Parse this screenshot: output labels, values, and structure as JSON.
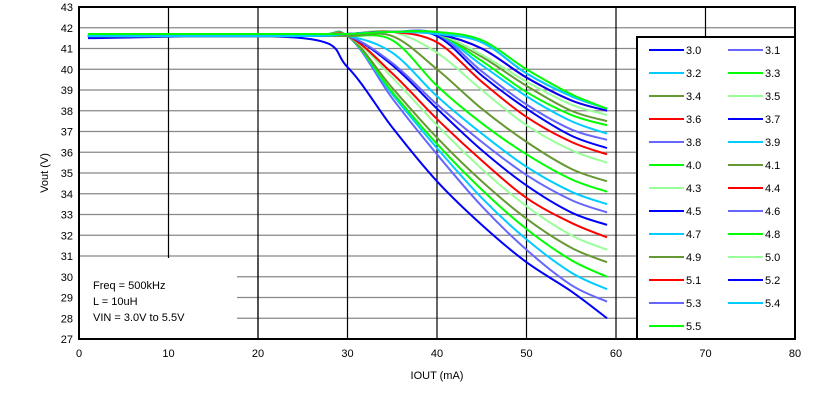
{
  "chart_data": {
    "type": "line",
    "title": "",
    "xlabel": "IOUT (mA)",
    "ylabel": "Vout (V)",
    "xlim": [
      0,
      80
    ],
    "ylim": [
      27,
      43
    ],
    "xticks": [
      "0",
      "10",
      "20",
      "30",
      "40",
      "50",
      "60",
      "70",
      "80"
    ],
    "yticks": [
      "27",
      "28",
      "29",
      "30",
      "31",
      "32",
      "33",
      "34",
      "35",
      "36",
      "37",
      "38",
      "39",
      "40",
      "41",
      "42",
      "43"
    ],
    "grid": true,
    "legend_placement": "right",
    "annotation": [
      "Freq = 500kHz",
      "L = 10uH",
      "VIN = 3.0V to 5.5V"
    ],
    "x": [
      1,
      25,
      30,
      35,
      40,
      45,
      50,
      55,
      59
    ],
    "series": [
      {
        "name": "3.0",
        "color": "#0000ff",
        "values": [
          41.5,
          41.5,
          40.1,
          37.2,
          34.6,
          32.5,
          30.7,
          29.3,
          28.0
        ]
      },
      {
        "name": "3.1",
        "color": "#6666ff",
        "values": [
          41.6,
          41.6,
          41.6,
          38.6,
          35.9,
          33.4,
          31.3,
          29.6,
          28.8
        ]
      },
      {
        "name": "3.2",
        "color": "#00ccff",
        "values": [
          41.6,
          41.6,
          41.6,
          38.8,
          36.2,
          33.8,
          31.8,
          30.2,
          29.4
        ]
      },
      {
        "name": "3.3",
        "color": "#00ff00",
        "values": [
          41.6,
          41.6,
          41.6,
          38.9,
          36.4,
          34.2,
          32.3,
          30.8,
          30.0
        ]
      },
      {
        "name": "3.4",
        "color": "#669933",
        "values": [
          41.6,
          41.6,
          41.6,
          39.1,
          36.7,
          34.6,
          32.8,
          31.4,
          30.7
        ]
      },
      {
        "name": "3.5",
        "color": "#99ff99",
        "values": [
          41.6,
          41.6,
          41.6,
          39.6,
          37.3,
          35.2,
          33.4,
          32.0,
          31.3
        ]
      },
      {
        "name": "3.6",
        "color": "#ff0000",
        "values": [
          41.6,
          41.6,
          41.6,
          39.8,
          37.6,
          35.6,
          33.8,
          32.6,
          31.9
        ]
      },
      {
        "name": "3.7",
        "color": "#0000ff",
        "values": [
          41.6,
          41.6,
          41.6,
          40.2,
          38.1,
          36.1,
          34.4,
          33.1,
          32.5
        ]
      },
      {
        "name": "3.8",
        "color": "#6666ff",
        "values": [
          41.6,
          41.6,
          41.6,
          40.3,
          38.3,
          36.5,
          34.9,
          33.7,
          33.1
        ]
      },
      {
        "name": "3.9",
        "color": "#00ccff",
        "values": [
          41.6,
          41.6,
          41.6,
          40.8,
          38.7,
          36.9,
          35.3,
          34.1,
          33.5
        ]
      },
      {
        "name": "4.0",
        "color": "#00ff00",
        "values": [
          41.6,
          41.6,
          41.6,
          41.4,
          39.2,
          37.4,
          35.9,
          34.7,
          34.1
        ]
      },
      {
        "name": "4.1",
        "color": "#669933",
        "values": [
          41.6,
          41.6,
          41.6,
          41.6,
          40.0,
          38.1,
          36.5,
          35.2,
          34.6
        ]
      },
      {
        "name": "4.3",
        "color": "#99ff99",
        "values": [
          41.6,
          41.6,
          41.7,
          41.8,
          40.8,
          39.0,
          37.3,
          36.1,
          35.5
        ]
      },
      {
        "name": "4.4",
        "color": "#ff0000",
        "values": [
          41.6,
          41.6,
          41.7,
          41.8,
          41.3,
          39.4,
          37.7,
          36.5,
          35.9
        ]
      },
      {
        "name": "4.5",
        "color": "#0000ff",
        "values": [
          41.6,
          41.6,
          41.7,
          41.8,
          41.6,
          39.7,
          38.1,
          36.8,
          36.2
        ]
      },
      {
        "name": "4.6",
        "color": "#6666ff",
        "values": [
          41.6,
          41.6,
          41.7,
          41.8,
          41.7,
          39.9,
          38.3,
          37.1,
          36.6
        ]
      },
      {
        "name": "4.7",
        "color": "#00ccff",
        "values": [
          41.6,
          41.6,
          41.7,
          41.8,
          41.7,
          40.2,
          38.7,
          37.5,
          36.9
        ]
      },
      {
        "name": "4.8",
        "color": "#00ff00",
        "values": [
          41.6,
          41.6,
          41.7,
          41.8,
          41.7,
          40.4,
          38.9,
          37.8,
          37.3
        ]
      },
      {
        "name": "4.9",
        "color": "#669933",
        "values": [
          41.6,
          41.6,
          41.7,
          41.8,
          41.7,
          40.6,
          39.2,
          38.0,
          37.5
        ]
      },
      {
        "name": "5.0",
        "color": "#99ff99",
        "values": [
          41.6,
          41.6,
          41.7,
          41.8,
          41.7,
          40.7,
          39.4,
          38.3,
          37.8
        ]
      },
      {
        "name": "5.1",
        "color": "#ff0000",
        "values": [
          41.6,
          41.6,
          41.7,
          41.8,
          41.7,
          41.0,
          39.6,
          38.5,
          38.0
        ]
      },
      {
        "name": "5.2",
        "color": "#0000ff",
        "values": [
          41.6,
          41.6,
          41.7,
          41.8,
          41.7,
          41.0,
          39.6,
          38.5,
          38.0
        ]
      },
      {
        "name": "5.3",
        "color": "#6666ff",
        "values": [
          41.6,
          41.6,
          41.7,
          41.8,
          41.7,
          41.3,
          39.8,
          38.7,
          38.1
        ]
      },
      {
        "name": "5.4",
        "color": "#00ccff",
        "values": [
          41.6,
          41.6,
          41.7,
          41.8,
          41.7,
          41.3,
          39.8,
          38.7,
          38.1
        ]
      },
      {
        "name": "5.5",
        "color": "#00ff00",
        "values": [
          41.7,
          41.7,
          41.7,
          41.8,
          41.8,
          41.4,
          40.0,
          38.8,
          38.1
        ]
      }
    ]
  }
}
